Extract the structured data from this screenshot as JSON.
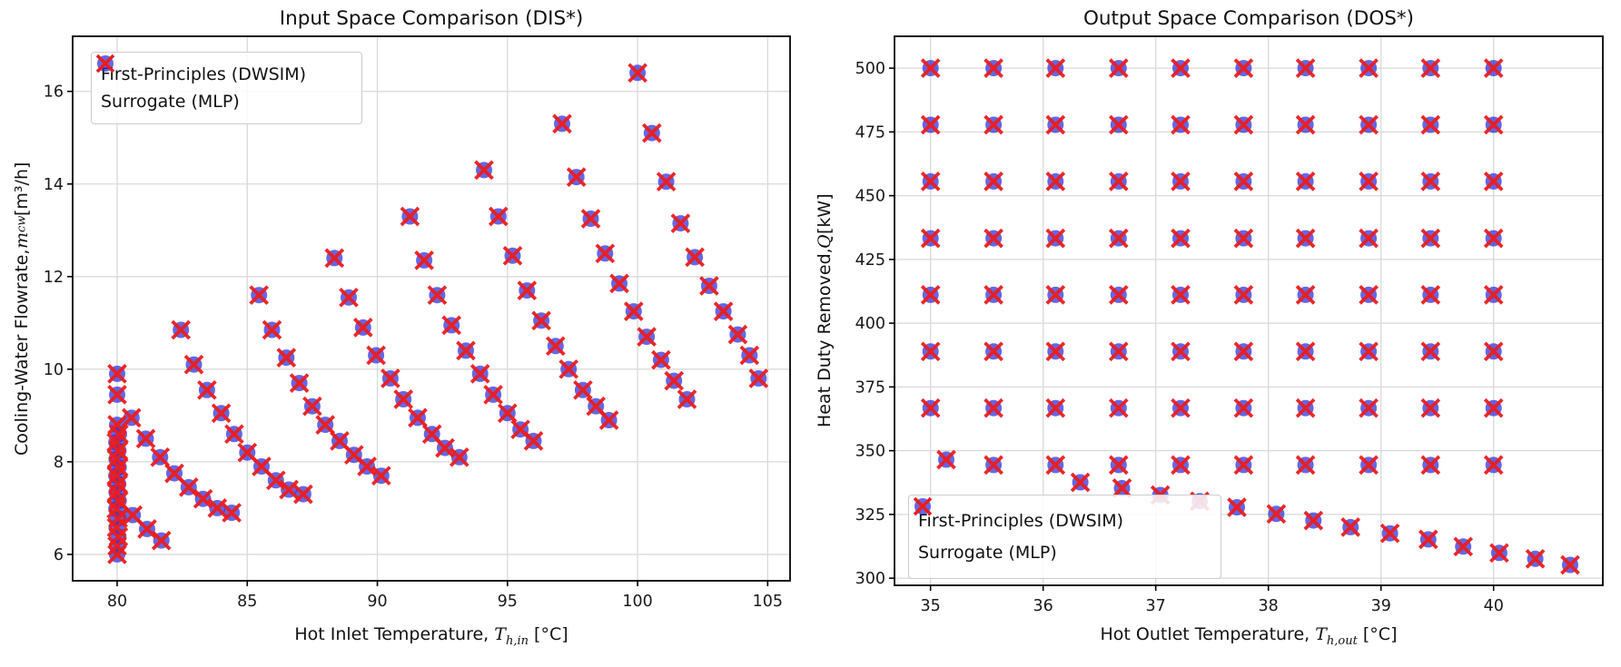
{
  "figure": {
    "background": "#ffffff"
  },
  "colors": {
    "circle_fill": "#2b2bd9",
    "circle_opacity": 0.72,
    "x_stroke": "#ec1c1c",
    "x_opacity": 0.95,
    "grid": "#d9d9d9",
    "spine": "#000000",
    "tick_text": "#1a1a1a"
  },
  "legend": {
    "items": [
      {
        "marker": "circle",
        "label": "First-Principles (DWSIM)"
      },
      {
        "marker": "x",
        "label": "Surrogate (MLP)"
      }
    ]
  },
  "chart_data": [
    {
      "type": "scatter",
      "title": "Input Space Comparison (DIS*)",
      "xlabel": {
        "pre": "Hot Inlet Temperature, ",
        "var": "T",
        "sub": "h,in",
        "post": " [°C]"
      },
      "ylabel": {
        "pre": "Cooling-Water Flowrate, ",
        "var": "m",
        "sub": "cw",
        "post": " [m³/h]"
      },
      "xlim": [
        78.29,
        105.86
      ],
      "ylim": [
        5.43,
        17.19
      ],
      "xticks": [
        80,
        85,
        90,
        95,
        100,
        105
      ],
      "yticks": [
        6,
        8,
        10,
        12,
        14,
        16
      ],
      "grid": true,
      "legend_position": "upper-left",
      "series_note": "Both series (DWSIM circles, MLP crosses) coincide at every point",
      "points": [
        [
          100.0,
          16.4
        ],
        [
          100.55,
          15.1
        ],
        [
          101.1,
          14.05
        ],
        [
          101.65,
          13.15
        ],
        [
          102.2,
          12.42
        ],
        [
          102.75,
          11.8
        ],
        [
          103.3,
          11.25
        ],
        [
          103.85,
          10.75
        ],
        [
          104.3,
          10.3
        ],
        [
          104.65,
          9.8
        ],
        [
          97.1,
          15.3
        ],
        [
          97.65,
          14.15
        ],
        [
          98.2,
          13.25
        ],
        [
          98.75,
          12.5
        ],
        [
          99.3,
          11.85
        ],
        [
          99.85,
          11.25
        ],
        [
          100.35,
          10.7
        ],
        [
          100.9,
          10.2
        ],
        [
          101.4,
          9.75
        ],
        [
          101.9,
          9.35
        ],
        [
          94.1,
          14.3
        ],
        [
          94.65,
          13.3
        ],
        [
          95.2,
          12.45
        ],
        [
          95.75,
          11.7
        ],
        [
          96.3,
          11.05
        ],
        [
          96.85,
          10.5
        ],
        [
          97.35,
          10.0
        ],
        [
          97.9,
          9.55
        ],
        [
          98.4,
          9.2
        ],
        [
          98.9,
          8.9
        ],
        [
          91.25,
          13.3
        ],
        [
          91.8,
          12.35
        ],
        [
          92.3,
          11.6
        ],
        [
          92.85,
          10.95
        ],
        [
          93.4,
          10.4
        ],
        [
          93.95,
          9.9
        ],
        [
          94.45,
          9.45
        ],
        [
          95.0,
          9.05
        ],
        [
          95.5,
          8.7
        ],
        [
          96.0,
          8.45
        ],
        [
          88.35,
          12.4
        ],
        [
          88.9,
          11.55
        ],
        [
          89.45,
          10.9
        ],
        [
          89.95,
          10.3
        ],
        [
          90.5,
          9.8
        ],
        [
          91.0,
          9.35
        ],
        [
          91.55,
          8.95
        ],
        [
          92.1,
          8.6
        ],
        [
          92.6,
          8.3
        ],
        [
          93.15,
          8.1
        ],
        [
          85.45,
          11.6
        ],
        [
          85.95,
          10.85
        ],
        [
          86.5,
          10.25
        ],
        [
          87.0,
          9.7
        ],
        [
          87.5,
          9.2
        ],
        [
          88.0,
          8.8
        ],
        [
          88.55,
          8.45
        ],
        [
          89.1,
          8.15
        ],
        [
          89.6,
          7.9
        ],
        [
          90.15,
          7.7
        ],
        [
          82.45,
          10.85
        ],
        [
          82.95,
          10.1
        ],
        [
          83.45,
          9.55
        ],
        [
          84.0,
          9.05
        ],
        [
          84.5,
          8.6
        ],
        [
          85.0,
          8.2
        ],
        [
          85.55,
          7.9
        ],
        [
          86.1,
          7.6
        ],
        [
          86.6,
          7.4
        ],
        [
          87.15,
          7.3
        ],
        [
          80.0,
          9.9
        ],
        [
          80.0,
          9.45
        ],
        [
          80.55,
          8.95
        ],
        [
          81.1,
          8.5
        ],
        [
          81.65,
          8.1
        ],
        [
          82.2,
          7.75
        ],
        [
          82.75,
          7.45
        ],
        [
          83.3,
          7.2
        ],
        [
          83.85,
          7.0
        ],
        [
          84.4,
          6.9
        ],
        [
          80.0,
          8.8
        ],
        [
          80.07,
          8.6
        ],
        [
          79.97,
          8.42
        ],
        [
          80.05,
          8.24
        ],
        [
          79.98,
          8.06
        ],
        [
          80.06,
          7.88
        ],
        [
          79.97,
          7.7
        ],
        [
          80.04,
          7.52
        ],
        [
          79.98,
          7.34
        ],
        [
          80.06,
          7.16
        ],
        [
          79.97,
          6.98
        ],
        [
          80.04,
          6.78
        ],
        [
          79.98,
          6.58
        ],
        [
          80.05,
          6.38
        ],
        [
          80.0,
          6.18
        ],
        [
          80.0,
          6.0
        ],
        [
          80.6,
          6.85
        ],
        [
          81.15,
          6.55
        ],
        [
          81.7,
          6.3
        ]
      ]
    },
    {
      "type": "scatter",
      "title": "Output Space Comparison (DOS*)",
      "xlabel": {
        "pre": "Hot Outlet Temperature, ",
        "var": "T",
        "sub": "h,out",
        "post": " [°C]"
      },
      "ylabel": {
        "pre": "Heat Duty Removed, ",
        "var": "Q",
        "sub": "",
        "post": " [kW]"
      },
      "xlim": [
        34.68,
        40.97
      ],
      "ylim": [
        297.2,
        512.5
      ],
      "xticks": [
        35,
        36,
        37,
        38,
        39,
        40
      ],
      "yticks": [
        300,
        325,
        350,
        375,
        400,
        425,
        450,
        475,
        500
      ],
      "grid": true,
      "legend_position": "lower-left",
      "series_note": "Both series (DWSIM circles, MLP crosses) coincide at every point",
      "points": [
        [
          35.0,
          500
        ],
        [
          35.56,
          500
        ],
        [
          36.11,
          500
        ],
        [
          36.67,
          500
        ],
        [
          37.22,
          500
        ],
        [
          37.78,
          500
        ],
        [
          38.33,
          500
        ],
        [
          38.89,
          500
        ],
        [
          39.44,
          500
        ],
        [
          40.0,
          500
        ],
        [
          35.0,
          477.8
        ],
        [
          35.56,
          477.8
        ],
        [
          36.11,
          477.8
        ],
        [
          36.67,
          477.8
        ],
        [
          37.22,
          477.8
        ],
        [
          37.78,
          477.8
        ],
        [
          38.33,
          477.8
        ],
        [
          38.89,
          477.8
        ],
        [
          39.44,
          477.8
        ],
        [
          40.0,
          477.8
        ],
        [
          35.0,
          455.6
        ],
        [
          35.56,
          455.6
        ],
        [
          36.11,
          455.6
        ],
        [
          36.67,
          455.6
        ],
        [
          37.22,
          455.6
        ],
        [
          37.78,
          455.6
        ],
        [
          38.33,
          455.6
        ],
        [
          38.89,
          455.6
        ],
        [
          39.44,
          455.6
        ],
        [
          40.0,
          455.6
        ],
        [
          35.0,
          433.3
        ],
        [
          35.56,
          433.3
        ],
        [
          36.11,
          433.3
        ],
        [
          36.67,
          433.3
        ],
        [
          37.22,
          433.3
        ],
        [
          37.78,
          433.3
        ],
        [
          38.33,
          433.3
        ],
        [
          38.89,
          433.3
        ],
        [
          39.44,
          433.3
        ],
        [
          40.0,
          433.3
        ],
        [
          35.0,
          411.1
        ],
        [
          35.56,
          411.1
        ],
        [
          36.11,
          411.1
        ],
        [
          36.67,
          411.1
        ],
        [
          37.22,
          411.1
        ],
        [
          37.78,
          411.1
        ],
        [
          38.33,
          411.1
        ],
        [
          38.89,
          411.1
        ],
        [
          39.44,
          411.1
        ],
        [
          40.0,
          411.1
        ],
        [
          35.0,
          388.9
        ],
        [
          35.56,
          388.9
        ],
        [
          36.11,
          388.9
        ],
        [
          36.67,
          388.9
        ],
        [
          37.22,
          388.9
        ],
        [
          37.78,
          388.9
        ],
        [
          38.33,
          388.9
        ],
        [
          38.89,
          388.9
        ],
        [
          39.44,
          388.9
        ],
        [
          40.0,
          388.9
        ],
        [
          35.0,
          366.7
        ],
        [
          35.56,
          366.7
        ],
        [
          36.11,
          366.7
        ],
        [
          36.67,
          366.7
        ],
        [
          37.22,
          366.7
        ],
        [
          37.78,
          366.7
        ],
        [
          38.33,
          366.7
        ],
        [
          38.89,
          366.7
        ],
        [
          39.44,
          366.7
        ],
        [
          40.0,
          366.7
        ],
        [
          35.14,
          346.5
        ],
        [
          35.56,
          344.4
        ],
        [
          36.11,
          344.4
        ],
        [
          36.67,
          344.4
        ],
        [
          37.22,
          344.4
        ],
        [
          37.78,
          344.4
        ],
        [
          38.33,
          344.4
        ],
        [
          38.89,
          344.4
        ],
        [
          39.44,
          344.4
        ],
        [
          40.0,
          344.4
        ],
        [
          36.33,
          337.6
        ],
        [
          36.7,
          335.3
        ],
        [
          37.04,
          332.6
        ],
        [
          37.39,
          330.2
        ],
        [
          37.72,
          327.8
        ],
        [
          38.07,
          325.2
        ],
        [
          38.4,
          322.6
        ],
        [
          38.73,
          320.0
        ],
        [
          39.08,
          317.6
        ],
        [
          39.42,
          315.2
        ],
        [
          39.73,
          312.4
        ],
        [
          40.05,
          309.9
        ],
        [
          40.37,
          307.6
        ],
        [
          40.68,
          305.2
        ]
      ]
    }
  ]
}
